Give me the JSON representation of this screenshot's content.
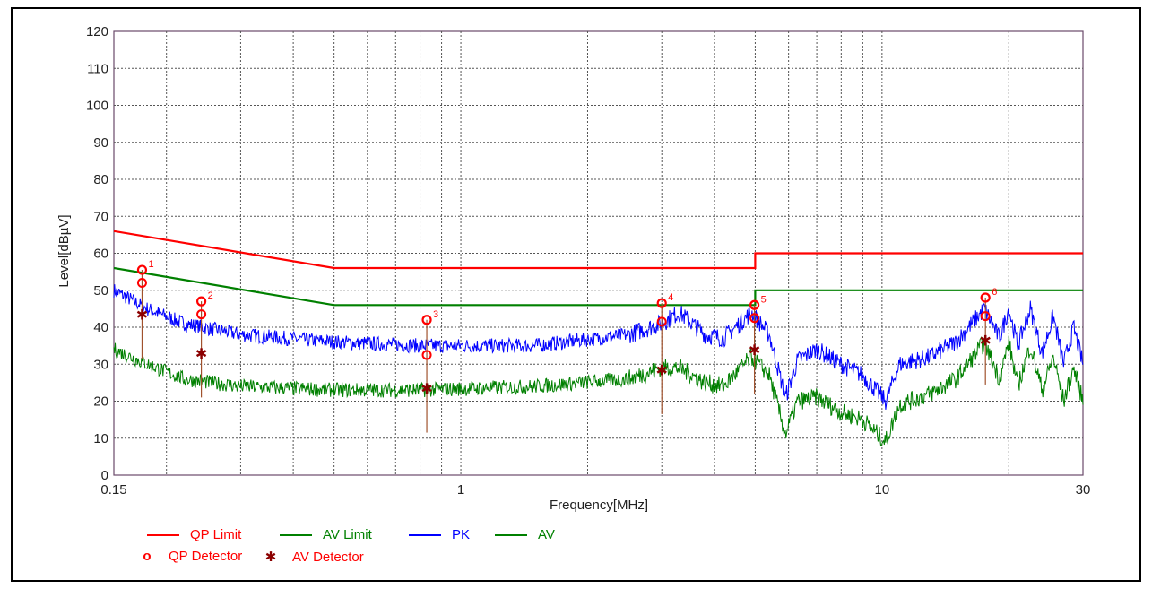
{
  "chart_data": {
    "type": "line",
    "xscale": "log",
    "xlabel": "Frequency[MHz]",
    "ylabel": "Level[dBµV]",
    "xlim": [
      0.15,
      30
    ],
    "ylim": [
      0,
      120
    ],
    "x_ticks": [
      {
        "value": 0.15,
        "label": "0.15"
      },
      {
        "value": 1,
        "label": "1"
      },
      {
        "value": 10,
        "label": "10"
      },
      {
        "value": 30,
        "label": "30"
      }
    ],
    "y_ticks": [
      0,
      10,
      20,
      30,
      40,
      50,
      60,
      70,
      80,
      90,
      100,
      110,
      120
    ],
    "grid": true,
    "legend_position": "bottom-left",
    "series": [
      {
        "name": "QP Limit",
        "color": "#ff0000",
        "style": "line",
        "points": [
          [
            0.15,
            66
          ],
          [
            0.5,
            56
          ],
          [
            5,
            56
          ],
          [
            5,
            60
          ],
          [
            30,
            60
          ]
        ]
      },
      {
        "name": "AV Limit",
        "color": "#008000",
        "style": "line",
        "points": [
          [
            0.15,
            56
          ],
          [
            0.5,
            46
          ],
          [
            5,
            46
          ],
          [
            5,
            50
          ],
          [
            30,
            50
          ]
        ]
      },
      {
        "name": "PK",
        "color": "#0000ff",
        "style": "noisy-line",
        "points": [
          [
            0.15,
            50
          ],
          [
            0.18,
            45
          ],
          [
            0.22,
            41
          ],
          [
            0.3,
            38
          ],
          [
            0.5,
            36
          ],
          [
            0.8,
            35
          ],
          [
            1.5,
            35
          ],
          [
            2.5,
            38
          ],
          [
            3.0,
            41
          ],
          [
            3.3,
            44
          ],
          [
            3.8,
            38
          ],
          [
            4.2,
            37
          ],
          [
            4.9,
            44
          ],
          [
            5.4,
            38
          ],
          [
            5.9,
            21
          ],
          [
            6.3,
            31
          ],
          [
            7.0,
            34
          ],
          [
            8.0,
            30
          ],
          [
            9.0,
            27
          ],
          [
            10.2,
            20
          ],
          [
            11.0,
            30
          ],
          [
            13.0,
            32
          ],
          [
            15.0,
            36
          ],
          [
            17.5,
            45
          ],
          [
            19.0,
            37
          ],
          [
            20.0,
            45
          ],
          [
            21.0,
            35
          ],
          [
            22.5,
            45
          ],
          [
            24.0,
            33
          ],
          [
            25.5,
            43
          ],
          [
            27.0,
            30
          ],
          [
            28.5,
            40
          ],
          [
            30,
            30
          ]
        ]
      },
      {
        "name": "AV",
        "color": "#008000",
        "style": "noisy-line",
        "points": [
          [
            0.15,
            34
          ],
          [
            0.18,
            30
          ],
          [
            0.22,
            26
          ],
          [
            0.3,
            24
          ],
          [
            0.5,
            23
          ],
          [
            0.8,
            23
          ],
          [
            1.5,
            24
          ],
          [
            2.5,
            26
          ],
          [
            3.0,
            29
          ],
          [
            3.3,
            29
          ],
          [
            3.8,
            25
          ],
          [
            4.2,
            24
          ],
          [
            4.9,
            32
          ],
          [
            5.4,
            27
          ],
          [
            5.9,
            11
          ],
          [
            6.3,
            20
          ],
          [
            7.0,
            21
          ],
          [
            8.0,
            17
          ],
          [
            9.0,
            15
          ],
          [
            10.2,
            9
          ],
          [
            11.0,
            19
          ],
          [
            13.0,
            22
          ],
          [
            15.0,
            26
          ],
          [
            17.5,
            36
          ],
          [
            19.0,
            26
          ],
          [
            20.0,
            36
          ],
          [
            21.0,
            24
          ],
          [
            22.5,
            35
          ],
          [
            24.0,
            23
          ],
          [
            25.5,
            32
          ],
          [
            27.0,
            20
          ],
          [
            28.5,
            29
          ],
          [
            30,
            20
          ]
        ]
      }
    ],
    "markers": [
      {
        "label": "1",
        "freq": 0.175,
        "peak": 55.5,
        "qp": 52,
        "av": 43.5
      },
      {
        "label": "2",
        "freq": 0.242,
        "peak": 47,
        "qp": 43.5,
        "av": 33
      },
      {
        "label": "3",
        "freq": 0.83,
        "peak": 42,
        "qp": 32.5,
        "av": 23.5
      },
      {
        "label": "4",
        "freq": 3.0,
        "peak": 46.5,
        "qp": 41.5,
        "av": 28.5
      },
      {
        "label": "5",
        "freq": 4.98,
        "peak": 46,
        "qp": 42.5,
        "av": 34
      },
      {
        "label": "6",
        "freq": 17.6,
        "peak": 48,
        "qp": 43,
        "av": 36.5
      }
    ]
  },
  "legend": {
    "items": [
      {
        "label": "QP Limit",
        "kind": "line",
        "color": "#ff0000"
      },
      {
        "label": "AV Limit",
        "kind": "line",
        "color": "#008000"
      },
      {
        "label": "PK",
        "kind": "line",
        "color": "#0000ff"
      },
      {
        "label": "AV",
        "kind": "line",
        "color": "#008000"
      }
    ],
    "detectors": [
      {
        "label": "QP Detector",
        "symbol": "o",
        "color": "#ff0000"
      },
      {
        "label": "AV Detector",
        "symbol": "✱",
        "color": "#8b0000"
      }
    ]
  }
}
